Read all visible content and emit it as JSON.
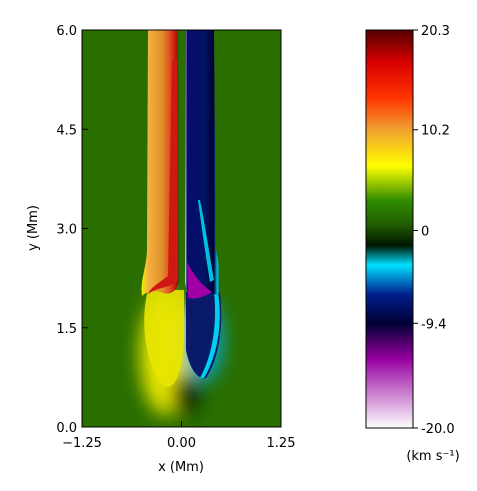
{
  "chart_data": {
    "type": "heatmap",
    "title": "",
    "xlabel": "x (Mm)",
    "ylabel": "y (Mm)",
    "xlim": [
      -1.25,
      1.25
    ],
    "ylim": [
      0.0,
      6.0
    ],
    "x_ticks": [
      {
        "value": -1.25,
        "label": "−1.25"
      },
      {
        "value": 0.0,
        "label": "0.00"
      },
      {
        "value": 1.25,
        "label": "1.25"
      }
    ],
    "y_ticks": [
      {
        "value": 0.0,
        "label": "0.0"
      },
      {
        "value": 1.5,
        "label": "1.5"
      },
      {
        "value": 3.0,
        "label": "3.0"
      },
      {
        "value": 4.5,
        "label": "4.5"
      },
      {
        "value": 6.0,
        "label": "6.0"
      }
    ],
    "background_value": 0,
    "features": [
      {
        "name": "upflow",
        "x_range": [
          -0.48,
          -0.02
        ],
        "y_range": [
          2.0,
          6.0
        ],
        "peak_value": 18
      },
      {
        "name": "downflow",
        "x_range": [
          0.02,
          0.45
        ],
        "y_range": [
          1.9,
          6.0
        ],
        "peak_value": -12
      },
      {
        "name": "lower-upflow",
        "x_range": [
          -0.45,
          0.1
        ],
        "y_range": [
          0.2,
          2.0
        ],
        "peak_value": 8
      },
      {
        "name": "lower-downflow",
        "x_range": [
          0.1,
          0.55
        ],
        "y_range": [
          0.7,
          2.0
        ],
        "peak_value": -6
      }
    ],
    "colorbar": {
      "min": -20.0,
      "max": 20.3,
      "unit": "(km s⁻¹)",
      "tick_labels": [
        {
          "value": 20.3,
          "label": "20.3"
        },
        {
          "value": 10.2,
          "label": "10.2"
        },
        {
          "value": 0,
          "label": "0"
        },
        {
          "value": -9.4,
          "label": "-9.4"
        },
        {
          "value": -20.0,
          "label": "-20.0"
        }
      ],
      "stops": [
        {
          "value": 20.3,
          "color": "#550000"
        },
        {
          "value": 17.0,
          "color": "#d80000"
        },
        {
          "value": 13.5,
          "color": "#ff3300"
        },
        {
          "value": 10.2,
          "color": "#f0a030"
        },
        {
          "value": 6.5,
          "color": "#ffff00"
        },
        {
          "value": 3.0,
          "color": "#2e8b00"
        },
        {
          "value": 0.5,
          "color": "#215a00"
        },
        {
          "value": -1.5,
          "color": "#001500"
        },
        {
          "value": -3.5,
          "color": "#00e0ff"
        },
        {
          "value": -6.5,
          "color": "#001e8c"
        },
        {
          "value": -9.4,
          "color": "#000033"
        },
        {
          "value": -13.0,
          "color": "#9600a0"
        },
        {
          "value": -20.0,
          "color": "#ffffff"
        }
      ]
    }
  }
}
